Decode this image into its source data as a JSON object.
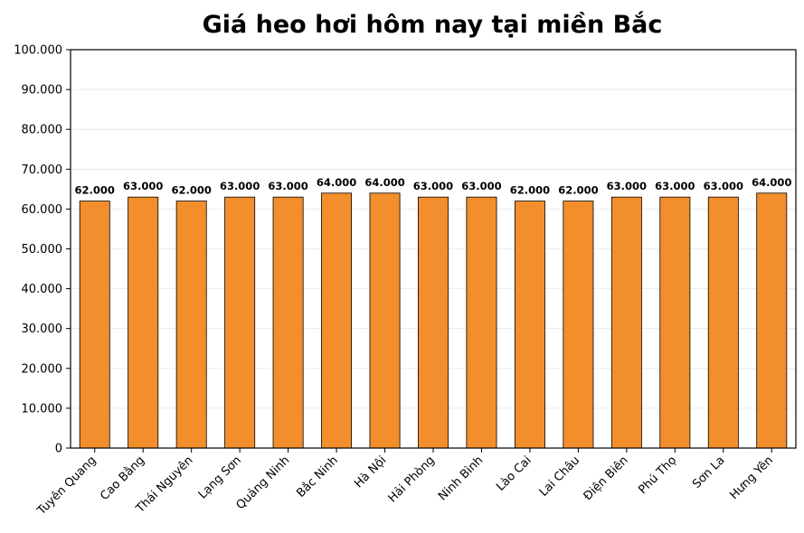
{
  "chart_data": {
    "type": "bar",
    "title": "Giá heo hơi hôm nay tại miền Bắc",
    "xlabel": "",
    "ylabel": "",
    "categories": [
      "Tuyên Quang",
      "Cao Bằng",
      "Thái Nguyên",
      "Lạng Sơn",
      "Quảng Ninh",
      "Bắc Ninh",
      "Hà Nội",
      "Hải Phòng",
      "Ninh Bình",
      "Lào Cai",
      "Lai Châu",
      "Điện Biên",
      "Phú Thọ",
      "Sơn La",
      "Hưng Yên"
    ],
    "values": [
      62000,
      63000,
      62000,
      63000,
      63000,
      64000,
      64000,
      63000,
      63000,
      62000,
      62000,
      63000,
      63000,
      63000,
      64000
    ],
    "value_labels": [
      "62.000",
      "63.000",
      "62.000",
      "63.000",
      "63.000",
      "64.000",
      "64.000",
      "63.000",
      "63.000",
      "62.000",
      "62.000",
      "63.000",
      "63.000",
      "63.000",
      "64.000"
    ],
    "ylim": [
      0,
      100000
    ],
    "yticks": [
      0,
      10000,
      20000,
      30000,
      40000,
      50000,
      60000,
      70000,
      80000,
      90000,
      100000
    ],
    "ytick_labels": [
      "0",
      "10.000",
      "20.000",
      "30.000",
      "40.000",
      "50.000",
      "60.000",
      "70.000",
      "80.000",
      "90.000",
      "100.000"
    ],
    "grid": true,
    "bar_color": "#f28e2b",
    "bar_edge_color": "#000000"
  }
}
